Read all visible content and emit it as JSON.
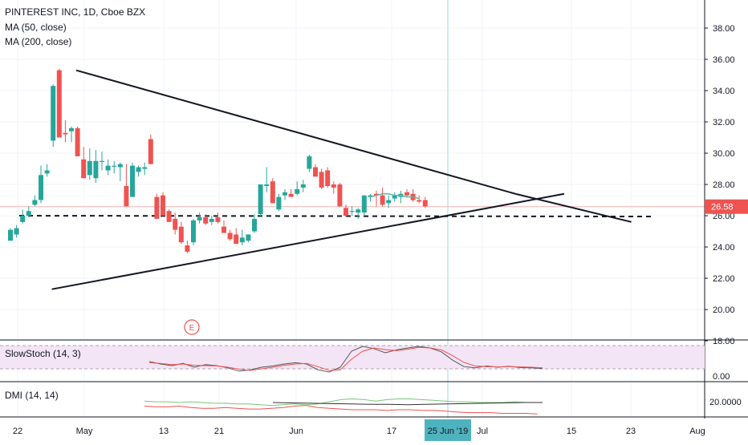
{
  "chart_data": {
    "type": "candlestick",
    "title": "PINTEREST INC, 1D, Cboe BZX",
    "indicators": [
      "MA (50, close)",
      "MA (200, close)"
    ],
    "last_price": "26.58",
    "crosshair_date": "25 Jun '19",
    "x_ticks": [
      "22",
      "May",
      "13",
      "21",
      "Jun",
      "17",
      "Jul",
      "15",
      "23",
      "Aug"
    ],
    "y_ticks": [
      "38.00",
      "36.00",
      "34.00",
      "32.00",
      "30.00",
      "28.00",
      "26.00",
      "24.00",
      "22.00",
      "20.00",
      "18.00"
    ],
    "ylim": [
      17.5,
      39
    ],
    "candles": [
      [
        24.4,
        25.2,
        24.4,
        25.1
      ],
      [
        24.8,
        25.4,
        24.6,
        25.2
      ],
      [
        25.6,
        26.4,
        25.5,
        26.0
      ],
      [
        26.0,
        26.6,
        25.9,
        26.3
      ],
      [
        26.7,
        27.3,
        26.6,
        27.0
      ],
      [
        27.0,
        29.2,
        26.8,
        28.6
      ],
      [
        28.7,
        29.3,
        28.5,
        28.9
      ],
      [
        30.8,
        34.4,
        30.4,
        34.3
      ],
      [
        35.3,
        35.4,
        31.1,
        31.0
      ],
      [
        31.3,
        32.1,
        30.7,
        31.2
      ],
      [
        31.4,
        31.7,
        30.7,
        31.6
      ],
      [
        31.6,
        31.7,
        29.8,
        29.8
      ],
      [
        29.6,
        30.4,
        28.4,
        28.4
      ],
      [
        28.6,
        30.3,
        28.3,
        29.5
      ],
      [
        28.4,
        30.2,
        28.1,
        29.5
      ],
      [
        29.5,
        30.1,
        28.9,
        29.5
      ],
      [
        28.9,
        29.6,
        28.6,
        29.2
      ],
      [
        29.2,
        29.5,
        28.7,
        29.2
      ],
      [
        29.1,
        29.4,
        28.2,
        29.3
      ],
      [
        27.9,
        29.3,
        26.8,
        26.6
      ],
      [
        27.2,
        29.4,
        27.2,
        29.2
      ],
      [
        28.8,
        29.2,
        28.5,
        29.1
      ],
      [
        29.0,
        29.4,
        28.6,
        29.1
      ],
      [
        30.9,
        31.2,
        29.3,
        29.3
      ],
      [
        27.2,
        27.4,
        25.8,
        25.8
      ],
      [
        27.3,
        27.5,
        26.0,
        26.0
      ],
      [
        26.3,
        26.4,
        25.6,
        25.6
      ],
      [
        25.8,
        26.2,
        24.8,
        25.1
      ],
      [
        25.3,
        25.6,
        24.2,
        24.3
      ],
      [
        24.1,
        24.4,
        23.6,
        23.7
      ],
      [
        24.3,
        25.8,
        24.1,
        25.7
      ],
      [
        25.7,
        26.2,
        25.5,
        25.9
      ],
      [
        25.9,
        26.1,
        25.4,
        25.5
      ],
      [
        25.6,
        26.0,
        25.4,
        25.8
      ],
      [
        25.9,
        26.2,
        25.5,
        25.6
      ],
      [
        25.3,
        25.7,
        24.9,
        24.9
      ],
      [
        24.9,
        25.1,
        24.4,
        24.5
      ],
      [
        24.8,
        25.2,
        24.2,
        24.2
      ],
      [
        24.3,
        25.1,
        24.1,
        24.6
      ],
      [
        24.4,
        24.8,
        24.3,
        24.8
      ],
      [
        25.0,
        26.1,
        24.9,
        25.8
      ],
      [
        26.1,
        28.0,
        25.9,
        28.0
      ],
      [
        27.9,
        29.1,
        27.5,
        28.0
      ],
      [
        28.2,
        28.4,
        26.8,
        26.8
      ],
      [
        26.4,
        27.4,
        26.3,
        27.2
      ],
      [
        27.3,
        27.7,
        27.0,
        27.5
      ],
      [
        27.4,
        27.7,
        27.3,
        27.2
      ],
      [
        27.4,
        28.2,
        27.3,
        27.7
      ],
      [
        27.8,
        28.3,
        27.5,
        28.0
      ],
      [
        29.0,
        29.9,
        28.8,
        29.8
      ],
      [
        29.1,
        29.3,
        28.5,
        28.5
      ],
      [
        28.8,
        29.0,
        27.7,
        27.8
      ],
      [
        28.9,
        29.1,
        27.8,
        27.9
      ],
      [
        28.0,
        28.2,
        27.4,
        27.8
      ],
      [
        28.0,
        28.1,
        26.6,
        26.6
      ],
      [
        26.5,
        26.7,
        25.9,
        26.0
      ],
      [
        26.3,
        26.6,
        26.0,
        26.3
      ],
      [
        26.2,
        26.5,
        25.8,
        26.4
      ],
      [
        26.2,
        27.3,
        26.0,
        27.3
      ],
      [
        27.2,
        27.4,
        26.9,
        27.3
      ],
      [
        27.4,
        27.6,
        26.6,
        27.3
      ],
      [
        27.3,
        27.8,
        26.6,
        26.7
      ],
      [
        26.8,
        27.3,
        26.5,
        27.0
      ],
      [
        27.1,
        27.5,
        26.9,
        27.3
      ],
      [
        27.2,
        27.6,
        26.8,
        27.4
      ],
      [
        27.5,
        27.7,
        27.2,
        27.3
      ],
      [
        27.4,
        27.7,
        26.9,
        27.0
      ],
      [
        27.0,
        27.3,
        26.8,
        26.9
      ],
      [
        27.0,
        27.2,
        26.5,
        26.6
      ]
    ],
    "ma_line": [
      27.2,
      27.3,
      27.4,
      27.4,
      27.3,
      27.3,
      27.2,
      27.2,
      27.1
    ],
    "trendlines": [
      {
        "from": [
          0,
          35.3
        ],
        "to": [
          72,
          27.4
        ]
      },
      {
        "from": [
          72,
          27.4
        ],
        "to": [
          91,
          25.6
        ]
      },
      {
        "from": [
          -4,
          21.3
        ],
        "to": [
          80,
          27.4
        ]
      }
    ],
    "support_level": 26.0,
    "earnings_marker": "E",
    "stoch": {
      "label": "SlowStoch (14, 3)",
      "y_tick": "0.00",
      "k": [
        48,
        40,
        35,
        42,
        30,
        38,
        35,
        28,
        18,
        22,
        30,
        34,
        40,
        44,
        40,
        22,
        15,
        30,
        80,
        95,
        88,
        75,
        84,
        90,
        95,
        90,
        78,
        52,
        32,
        28,
        34,
        30,
        33,
        29,
        28,
        26
      ],
      "d": [
        44,
        42,
        38,
        40,
        36,
        35,
        34,
        30,
        24,
        20,
        25,
        30,
        36,
        40,
        42,
        32,
        20,
        22,
        55,
        80,
        90,
        85,
        82,
        86,
        92,
        90,
        84,
        66,
        45,
        34,
        32,
        31,
        32,
        31,
        30,
        28
      ]
    },
    "dmi": {
      "label": "DMI (14, 14)",
      "y_tick": "20.0000",
      "plus": [
        22,
        21,
        21,
        20,
        21,
        20,
        19,
        19,
        18,
        18,
        17,
        16,
        17,
        18,
        17,
        18,
        21,
        24,
        25,
        24,
        22,
        24,
        25,
        25,
        24,
        23,
        22,
        21,
        21,
        20,
        20,
        20,
        21,
        20,
        20
      ],
      "minus": [
        15,
        14,
        14,
        15,
        13,
        12,
        12,
        13,
        12,
        11,
        11,
        12,
        13,
        15,
        16,
        13,
        12,
        11,
        10,
        10,
        10,
        9,
        10,
        10,
        9,
        9,
        8,
        7,
        6,
        6,
        6,
        5,
        5,
        5,
        4
      ],
      "adx": [
        20,
        19.5,
        19,
        18.5,
        18,
        17.5,
        17.5,
        17,
        17.5,
        18,
        18.5,
        19,
        19.5,
        20,
        20
      ]
    },
    "colors": {
      "up": "#26a69a",
      "down": "#ef5350",
      "ma": "#64b5a8",
      "price_label": "#ef5350",
      "crosshair_label": "#4fb3bf",
      "stoch_band": "#f3e5f5"
    }
  }
}
